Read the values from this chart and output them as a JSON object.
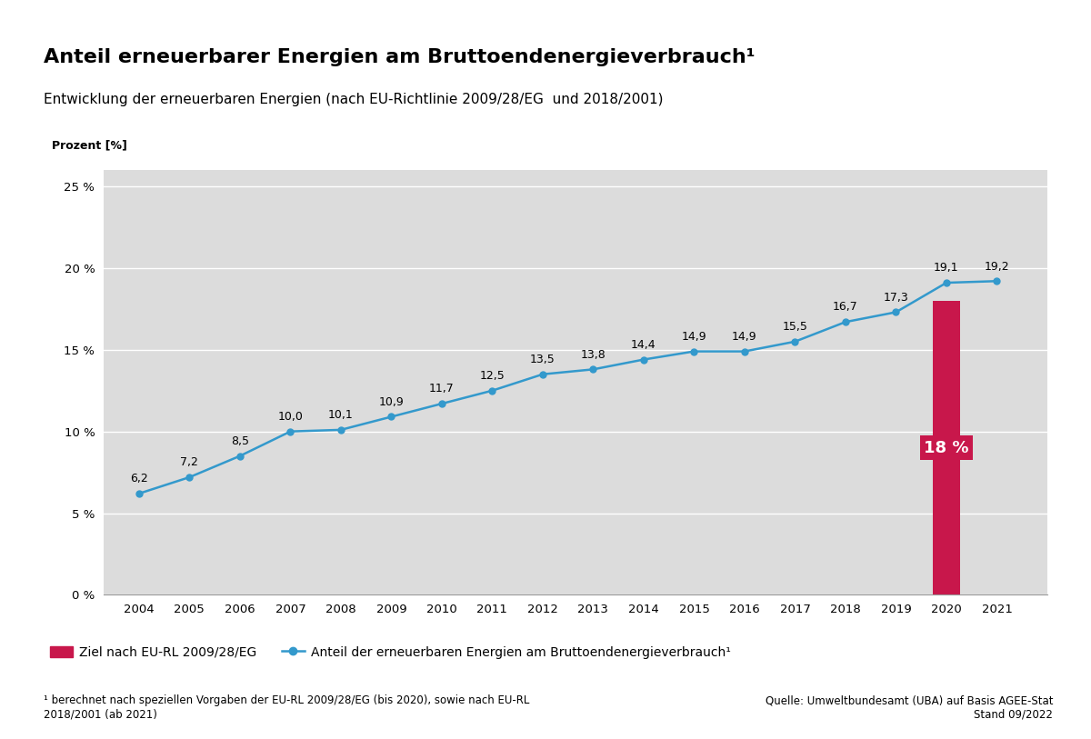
{
  "title": "Anteil erneuerbarer Energien am Bruttoendenergieverbrauch¹",
  "subtitle": "Entwicklung der erneuerbaren Energien (nach EU-Richtlinie 2009/28/EG  und 2018/2001)",
  "ylabel": "Prozent [%]",
  "years": [
    2004,
    2005,
    2006,
    2007,
    2008,
    2009,
    2010,
    2011,
    2012,
    2013,
    2014,
    2015,
    2016,
    2017,
    2018,
    2019,
    2020,
    2021
  ],
  "values": [
    6.2,
    7.2,
    8.5,
    10.0,
    10.1,
    10.9,
    11.7,
    12.5,
    13.5,
    13.8,
    14.4,
    14.9,
    14.9,
    15.5,
    16.7,
    17.3,
    19.1,
    19.2
  ],
  "bar_year": 2020,
  "bar_value": 18,
  "bar_label": "18 %",
  "bar_color": "#C8174B",
  "line_color": "#3399CC",
  "marker_color": "#3399CC",
  "ylim": [
    0,
    26
  ],
  "yticks": [
    0,
    5,
    10,
    15,
    20,
    25
  ],
  "ytick_labels": [
    "0 %",
    "5 %",
    "10 %",
    "15 %",
    "20 %",
    "25 %"
  ],
  "background_color": "#DCDCDC",
  "legend_bar_label": "Ziel nach EU-RL 2009/28/EG",
  "legend_line_label": "Anteil der erneuerbaren Energien am Bruttoendenergieverbrauch¹",
  "footnote": "¹ berechnet nach speziellen Vorgaben der EU-RL 2009/28/EG (bis 2020), sowie nach EU-RL\n2018/2001 (ab 2021)",
  "source": "Quelle: Umweltbundesamt (UBA) auf Basis AGEE-Stat\nStand 09/2022",
  "top_border_color": "#2B2B2B",
  "separator_color": "#2B2B2B",
  "bottom_separator_color": "#2B2B2B"
}
